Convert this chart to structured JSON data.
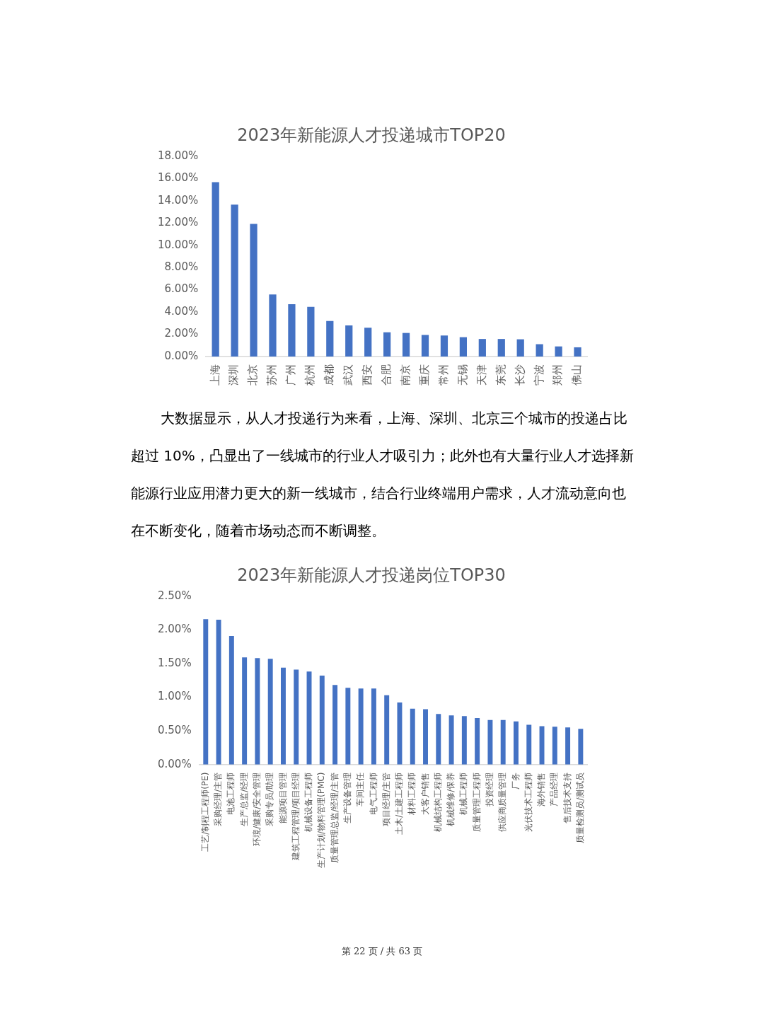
{
  "chart_data": [
    {
      "type": "bar",
      "title": "2023年新能源人才投递城市TOP20",
      "categories": [
        "上海",
        "深圳",
        "北京",
        "苏州",
        "广州",
        "杭州",
        "成都",
        "武汉",
        "西安",
        "合肥",
        "南京",
        "重庆",
        "常州",
        "无锡",
        "天津",
        "东莞",
        "长沙",
        "宁波",
        "郑州",
        "佛山"
      ],
      "values": [
        15.67,
        13.65,
        11.92,
        5.57,
        4.71,
        4.46,
        3.19,
        2.8,
        2.59,
        2.18,
        2.12,
        1.94,
        1.89,
        1.74,
        1.58,
        1.58,
        1.55,
        1.11,
        0.91,
        0.83
      ],
      "color": "#4472c4",
      "ylim": [
        0,
        18
      ],
      "yticks": [
        {
          "value": 0,
          "label": "0.00%"
        },
        {
          "value": 2,
          "label": "2.00%"
        },
        {
          "value": 4,
          "label": "4.00%"
        },
        {
          "value": 6,
          "label": "6.00%"
        },
        {
          "value": 8,
          "label": "8.00%"
        },
        {
          "value": 10,
          "label": "10.00%"
        },
        {
          "value": 12,
          "label": "12.00%"
        },
        {
          "value": 14,
          "label": "14.00%"
        },
        {
          "value": 16,
          "label": "16.00%"
        },
        {
          "value": 18,
          "label": "18.00%"
        }
      ]
    },
    {
      "type": "other",
      "annotations": [
        "大数据显示，从人才投递行为来看，上海、深圳、北京三个城市的投递占比超过 10%，凸显出了一线城市的行业人才吸引力；此外也有大量行业人才选择新能源行业应用潜力更大的新一线城市，结合行业终端用户需求，人才流动意向也在不断变化，随着市场动态而不断调整。"
      ]
    },
    {
      "type": "bar",
      "title": "2023年新能源人才投递岗位TOP30",
      "categories": [
        "工艺/制程工程师(PE)",
        "采购经理/主管",
        "电池工程师",
        "生产总监/经理",
        "环境/健康/安全管理",
        "采购专员/助理",
        "能源项目管理",
        "建筑工程管理/项目经理",
        "机械设备工程师",
        "生产计划/物料管理(PMC)",
        "质量管理总监/经理/主管",
        "生产设备管理",
        "车间主任",
        "电气工程师",
        "项目经理/主管",
        "土木/土建工程师",
        "材料工程师",
        "大客户销售",
        "机械结构工程师",
        "机械维修/保养",
        "机械工程师",
        "质量管理工程师",
        "投资经理",
        "供应商质量管理",
        "厂务",
        "光伏技术工程师",
        "海外销售",
        "产品经理",
        "售后技术支持",
        "质量检测员/测试员"
      ],
      "values": [
        2.16,
        2.15,
        1.91,
        1.59,
        1.58,
        1.57,
        1.44,
        1.41,
        1.38,
        1.32,
        1.18,
        1.14,
        1.13,
        1.13,
        1.03,
        0.92,
        0.83,
        0.82,
        0.75,
        0.73,
        0.72,
        0.69,
        0.66,
        0.66,
        0.64,
        0.59,
        0.57,
        0.56,
        0.55,
        0.53
      ],
      "color": "#4472c4",
      "ylim": [
        0,
        2.5
      ],
      "yticks": [
        {
          "value": 0,
          "label": "0.00%"
        },
        {
          "value": 0.5,
          "label": "0.50%"
        },
        {
          "value": 1,
          "label": "1.00%"
        },
        {
          "value": 1.5,
          "label": "1.50%"
        },
        {
          "value": 2,
          "label": "2.00%"
        },
        {
          "value": 2.5,
          "label": "2.50%"
        }
      ],
      "annotations": [
        "第 22 页 / 共 63 页"
      ]
    }
  ]
}
